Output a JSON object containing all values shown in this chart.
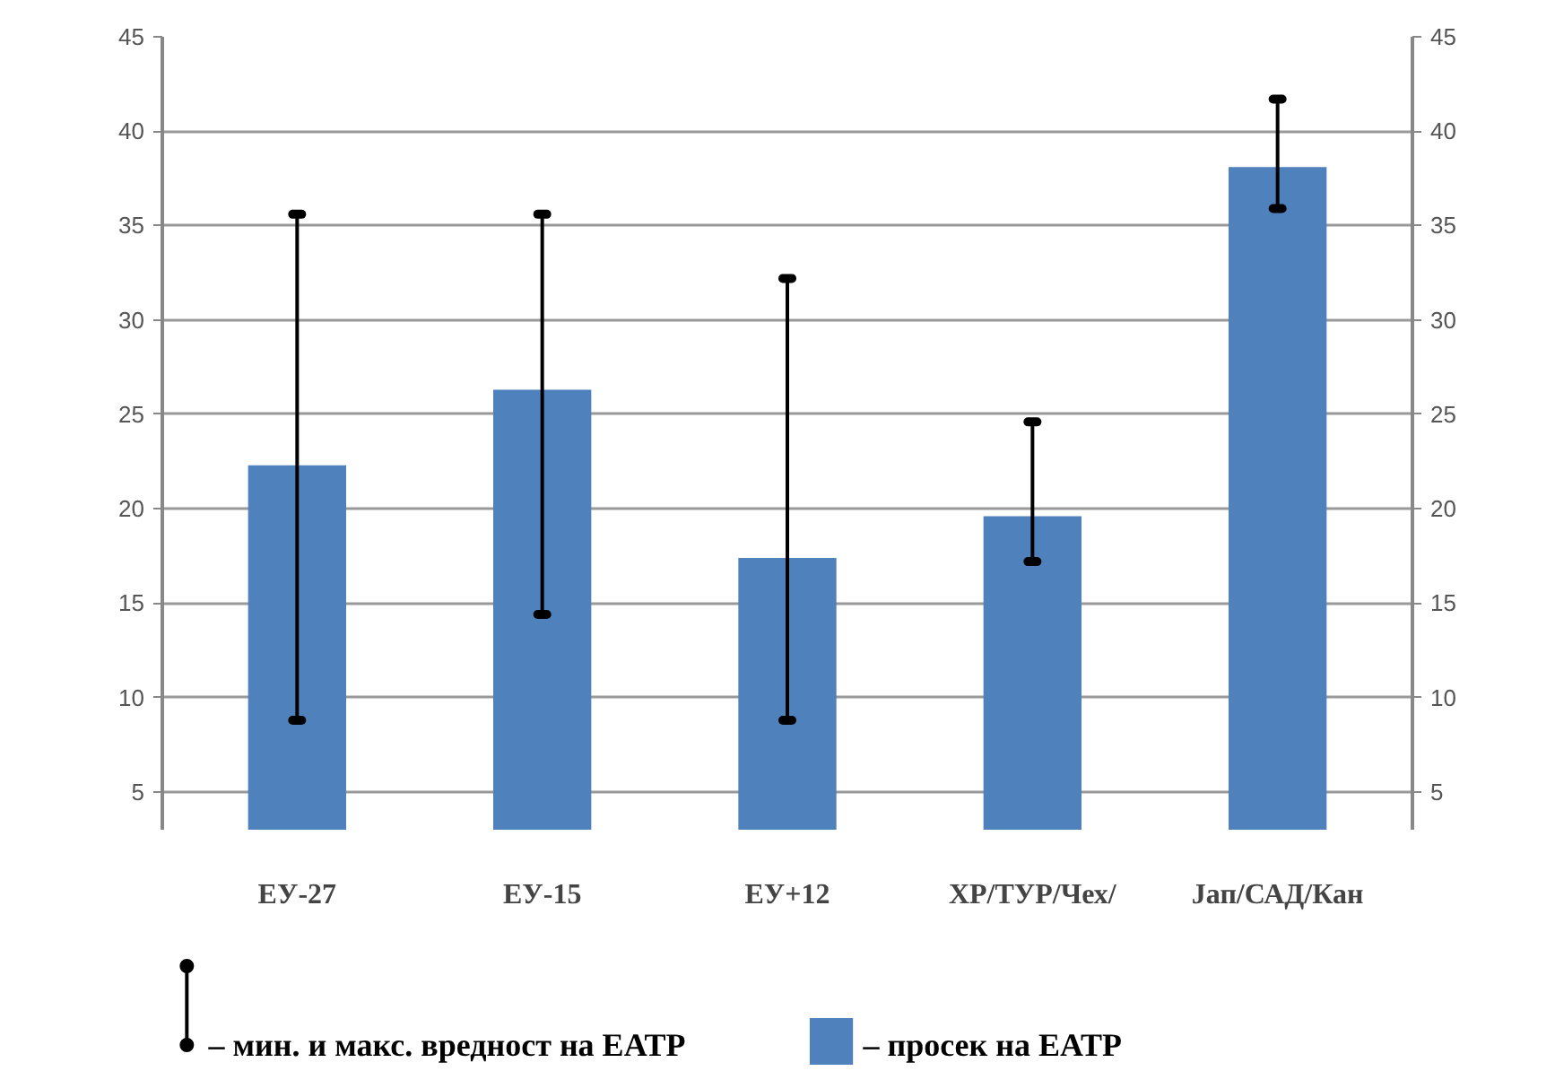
{
  "chart_data": {
    "type": "bar",
    "categories": [
      "ЕУ-27",
      "ЕУ-15",
      "ЕУ+12",
      "ХР/ТУР/Чех/",
      "Јап/САД/Кан"
    ],
    "series": [
      {
        "name": "– просек на ЕАТР",
        "color": "#4f81bd",
        "values": [
          22.3,
          26.3,
          17.4,
          19.6,
          38.1
        ],
        "errors": [
          [
            8.8,
            35.6
          ],
          [
            14.4,
            35.6
          ],
          [
            8.8,
            32.2
          ],
          [
            17.2,
            24.6
          ],
          [
            35.9,
            41.7
          ]
        ]
      }
    ],
    "annotations": [
      "– мин. и макс. вредност на ЕАТР"
    ],
    "ylim": [
      3,
      45
    ],
    "yticks": [
      5,
      10,
      15,
      20,
      25,
      30,
      35,
      40,
      45
    ],
    "y2lim": [
      3,
      45
    ],
    "y2ticks": [
      5,
      10,
      15,
      20,
      25,
      30,
      35,
      40,
      45
    ],
    "grid": "y",
    "legend": "bottom"
  }
}
